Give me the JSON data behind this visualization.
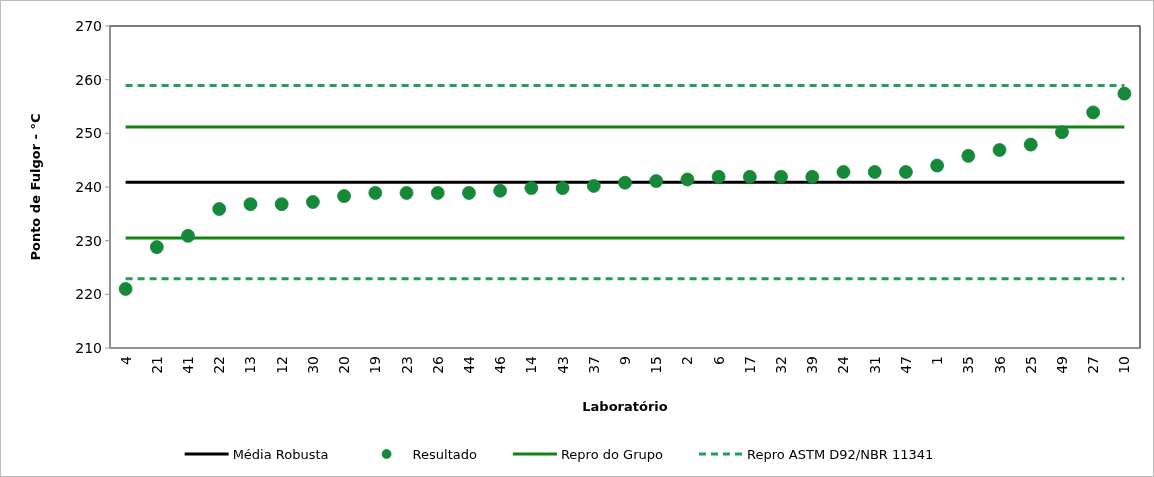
{
  "chart_data": {
    "type": "scatter",
    "xlabel": "Laboratório",
    "ylabel": "Ponto de Fulgor - °C",
    "categories": [
      "4",
      "21",
      "41",
      "22",
      "13",
      "12",
      "30",
      "20",
      "19",
      "23",
      "26",
      "44",
      "46",
      "14",
      "43",
      "37",
      "9",
      "15",
      "2",
      "6",
      "17",
      "32",
      "39",
      "24",
      "31",
      "47",
      "1",
      "35",
      "36",
      "25",
      "49",
      "27",
      "10"
    ],
    "series": [
      {
        "name": "Resultado",
        "color": "#16883a",
        "values": [
          221,
          228.8,
          230.9,
          235.9,
          236.8,
          236.8,
          237.2,
          238.3,
          238.9,
          238.9,
          238.9,
          238.9,
          239.3,
          239.8,
          239.8,
          240.2,
          240.8,
          241.1,
          241.4,
          241.9,
          241.9,
          241.9,
          241.9,
          242.8,
          242.8,
          242.8,
          244,
          245.8,
          246.9,
          247.9,
          250.2,
          253.9,
          257.4
        ]
      }
    ],
    "ref_lines": [
      {
        "axis": "y",
        "value": 240.9,
        "label": "Média Robusta",
        "color": "#000000",
        "line_style": "solid"
      },
      {
        "axis": "y",
        "value": 251.2,
        "label": "Repro do Grupo",
        "color": "#128312",
        "line_style": "solid"
      },
      {
        "axis": "y",
        "value": 230.5,
        "color": "#128312",
        "line_style": "solid"
      },
      {
        "axis": "y",
        "value": 258.9,
        "label": "Repro ASTM D92/NBR 11341",
        "color": "#1f9f5a",
        "line_style": "dashed"
      },
      {
        "axis": "y",
        "value": 222.9,
        "color": "#1f9f5a",
        "line_style": "dashed"
      }
    ],
    "ylim": [
      210,
      270
    ],
    "yticks": [
      210,
      220,
      230,
      240,
      250,
      260,
      270
    ],
    "grid": false,
    "legend": "bottom",
    "marker": "circle"
  }
}
